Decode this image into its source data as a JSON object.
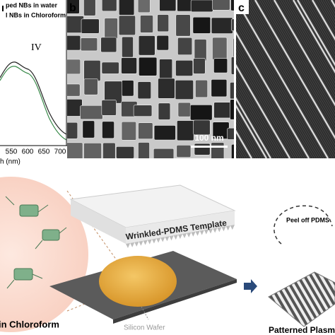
{
  "panel_a": {
    "legend": [
      "ped NBs in water",
      "l NBs in Chloroform"
    ],
    "peak_label": "IV",
    "x_tick_labels": [
      "550",
      "600",
      "650",
      "700"
    ],
    "x_axis_label": "h (nm)"
  },
  "panel_b": {
    "letter": "b",
    "scale_bar": "100 nm"
  },
  "panel_c": {
    "letter": "c"
  },
  "schematic": {
    "template_label": "Wrinkled-PDMS Template",
    "peel_label": "Peel off PDMS",
    "wafer_label": "Silicon Wafer",
    "left_caption": "in Chloroform",
    "right_caption": "Patterned Plasmonic"
  }
}
